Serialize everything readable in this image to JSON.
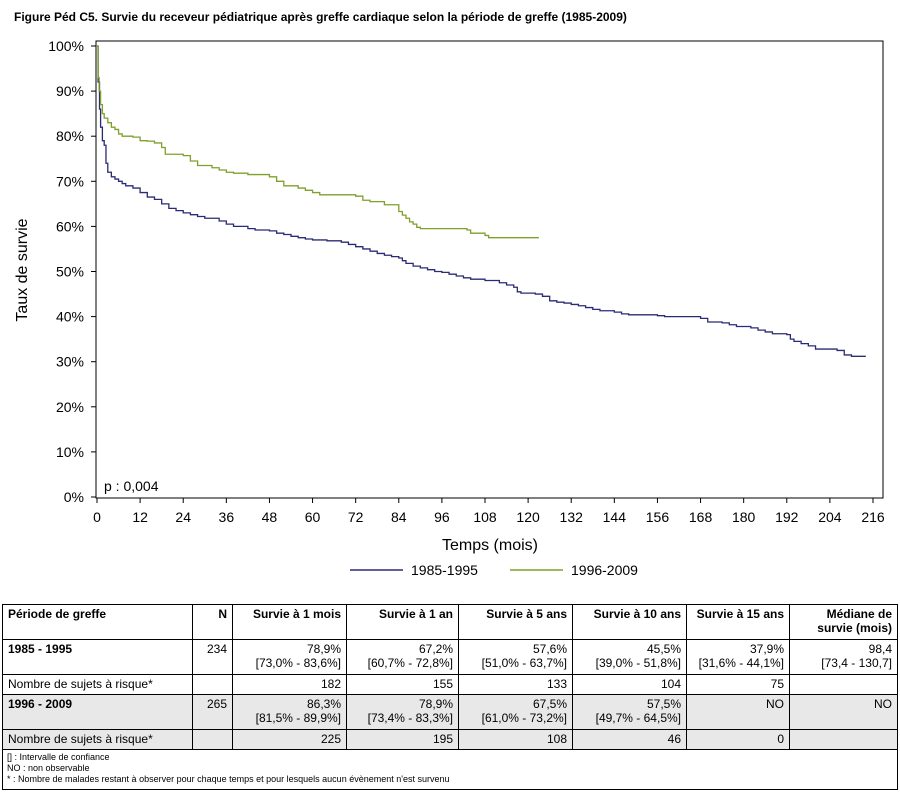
{
  "figure_title": "Figure Péd C5. Survie du receveur pédiatrique après greffe cardiaque selon la période de greffe (1985-2009)",
  "chart_data": {
    "type": "line",
    "subtype": "kaplan-meier step",
    "xlabel": "Temps (mois)",
    "ylabel": "Taux de survie",
    "xlim": [
      0,
      216
    ],
    "ylim": [
      0,
      100
    ],
    "x_ticks": [
      0,
      12,
      24,
      36,
      48,
      60,
      72,
      84,
      96,
      108,
      120,
      132,
      144,
      156,
      168,
      180,
      192,
      204,
      216
    ],
    "y_ticks": [
      0,
      10,
      20,
      30,
      40,
      50,
      60,
      70,
      80,
      90,
      100
    ],
    "y_tick_labels": [
      "0%",
      "10%",
      "20%",
      "30%",
      "40%",
      "50%",
      "60%",
      "70%",
      "80%",
      "90%",
      "100%"
    ],
    "grid": false,
    "legend_position": "bottom-center",
    "annotation": "p : 0,004",
    "series": [
      {
        "name": "1985-1995",
        "color": "#2b2b73",
        "points": [
          [
            0,
            100
          ],
          [
            0.3,
            92
          ],
          [
            0.7,
            86
          ],
          [
            1,
            82
          ],
          [
            1.5,
            79
          ],
          [
            2,
            78
          ],
          [
            2.5,
            74
          ],
          [
            3,
            72
          ],
          [
            4,
            71
          ],
          [
            5,
            70.5
          ],
          [
            6,
            70
          ],
          [
            7,
            69.5
          ],
          [
            8,
            69
          ],
          [
            10,
            68.5
          ],
          [
            12,
            67.5
          ],
          [
            14,
            66.5
          ],
          [
            16,
            66
          ],
          [
            18,
            65
          ],
          [
            20,
            64
          ],
          [
            22,
            63.5
          ],
          [
            24,
            63
          ],
          [
            26,
            62.6
          ],
          [
            28,
            62.2
          ],
          [
            30,
            61.8
          ],
          [
            34,
            61.2
          ],
          [
            36,
            60.5
          ],
          [
            38,
            60
          ],
          [
            42,
            59.5
          ],
          [
            44,
            59.2
          ],
          [
            48,
            59
          ],
          [
            50,
            58.5
          ],
          [
            52,
            58.2
          ],
          [
            54,
            57.8
          ],
          [
            56,
            57.5
          ],
          [
            58,
            57.2
          ],
          [
            60,
            57
          ],
          [
            64,
            56.8
          ],
          [
            68,
            56.5
          ],
          [
            70,
            56
          ],
          [
            72,
            55.5
          ],
          [
            74,
            55
          ],
          [
            76,
            54.5
          ],
          [
            78,
            54
          ],
          [
            80,
            53.6
          ],
          [
            82,
            53.3
          ],
          [
            84,
            53
          ],
          [
            85,
            52.4
          ],
          [
            86,
            51.8
          ],
          [
            88,
            51.2
          ],
          [
            90,
            50.8
          ],
          [
            92,
            50.4
          ],
          [
            94,
            50
          ],
          [
            96,
            49.8
          ],
          [
            98,
            49.4
          ],
          [
            100,
            49
          ],
          [
            102,
            48.6
          ],
          [
            104,
            48.3
          ],
          [
            108,
            48
          ],
          [
            112,
            47.5
          ],
          [
            114,
            47
          ],
          [
            116,
            46.5
          ],
          [
            117,
            45.5
          ],
          [
            118,
            45.2
          ],
          [
            122,
            45
          ],
          [
            124,
            44.5
          ],
          [
            126,
            43.5
          ],
          [
            128,
            43.2
          ],
          [
            130,
            43
          ],
          [
            132,
            42.7
          ],
          [
            134,
            42.4
          ],
          [
            136,
            42
          ],
          [
            138,
            41.6
          ],
          [
            140,
            41.3
          ],
          [
            144,
            41
          ],
          [
            146,
            40.6
          ],
          [
            148,
            40.4
          ],
          [
            156,
            40.2
          ],
          [
            158,
            40
          ],
          [
            168,
            39.6
          ],
          [
            170,
            38.8
          ],
          [
            174,
            38.6
          ],
          [
            176,
            38.2
          ],
          [
            178,
            37.8
          ],
          [
            182,
            37.5
          ],
          [
            184,
            37
          ],
          [
            186,
            36.6
          ],
          [
            188,
            36.2
          ],
          [
            192,
            36
          ],
          [
            193,
            35
          ],
          [
            194,
            34.5
          ],
          [
            196,
            34
          ],
          [
            198,
            33.5
          ],
          [
            200,
            32.8
          ],
          [
            206,
            32.5
          ],
          [
            208,
            31.5
          ],
          [
            210,
            31.2
          ],
          [
            214,
            31.2
          ]
        ]
      },
      {
        "name": "1996-2009",
        "color": "#7fa02b",
        "points": [
          [
            0,
            100
          ],
          [
            0.3,
            93
          ],
          [
            0.6,
            90
          ],
          [
            1,
            87
          ],
          [
            1.5,
            85
          ],
          [
            2,
            84
          ],
          [
            3,
            83
          ],
          [
            4,
            82
          ],
          [
            5,
            81.5
          ],
          [
            6,
            80.5
          ],
          [
            7,
            80
          ],
          [
            10,
            79.8
          ],
          [
            12,
            79
          ],
          [
            14,
            78.9
          ],
          [
            16,
            78.5
          ],
          [
            18,
            77.5
          ],
          [
            19,
            76
          ],
          [
            24,
            75.7
          ],
          [
            26,
            74.5
          ],
          [
            28,
            73.5
          ],
          [
            32,
            73
          ],
          [
            34,
            72.5
          ],
          [
            36,
            72
          ],
          [
            38,
            71.8
          ],
          [
            42,
            71.5
          ],
          [
            48,
            71
          ],
          [
            50,
            70
          ],
          [
            52,
            69
          ],
          [
            56,
            68.5
          ],
          [
            58,
            68
          ],
          [
            60,
            67.5
          ],
          [
            62,
            67
          ],
          [
            72,
            66.7
          ],
          [
            74,
            65.8
          ],
          [
            76,
            65.5
          ],
          [
            80,
            64.8
          ],
          [
            84,
            63.3
          ],
          [
            85,
            62.5
          ],
          [
            86,
            61.8
          ],
          [
            87,
            61
          ],
          [
            88,
            60.5
          ],
          [
            89,
            59.8
          ],
          [
            90,
            59.5
          ],
          [
            103,
            59.2
          ],
          [
            104,
            58.5
          ],
          [
            108,
            58
          ],
          [
            109,
            57.5
          ],
          [
            123,
            57.5
          ]
        ]
      }
    ]
  },
  "table": {
    "headers": [
      "Période de greffe",
      "N",
      "Survie à 1 mois",
      "Survie à 1 an",
      "Survie à 5 ans",
      "Survie à 10 ans",
      "Survie à 15 ans",
      "Médiane de survie (mois)"
    ],
    "groups": [
      {
        "period": "1985 - 1995",
        "n": "234",
        "s1m": "78,9%",
        "s1m_ci": "[73,0% - 83,6%]",
        "s1a": "67,2%",
        "s1a_ci": "[60,7% - 72,8%]",
        "s5a": "57,6%",
        "s5a_ci": "[51,0% - 63,7%]",
        "s10a": "45,5%",
        "s10a_ci": "[39,0% - 51,8%]",
        "s15a": "37,9%",
        "s15a_ci": "[31,6% - 44,1%]",
        "median": "98,4",
        "median_ci": "[73,4 - 130,7]",
        "risk_label": "Nombre de sujets à risque*",
        "risk": [
          "182",
          "155",
          "133",
          "104",
          "75"
        ]
      },
      {
        "period": "1996 - 2009",
        "n": "265",
        "s1m": "86,3%",
        "s1m_ci": "[81,5% - 89,9%]",
        "s1a": "78,9%",
        "s1a_ci": "[73,4% - 83,3%]",
        "s5a": "67,5%",
        "s5a_ci": "[61,0% - 73,2%]",
        "s10a": "57,5%",
        "s10a_ci": "[49,7% - 64,5%]",
        "s15a": "NO",
        "s15a_ci": "",
        "median": "NO",
        "median_ci": "",
        "risk_label": "Nombre de sujets à risque*",
        "risk": [
          "225",
          "195",
          "108",
          "46",
          "0"
        ]
      }
    ],
    "notes": [
      "[] : Intervalle de confiance",
      "NO : non observable",
      "* : Nombre de malades restant à observer pour chaque temps et pour lesquels aucun évènement n'est survenu"
    ]
  }
}
